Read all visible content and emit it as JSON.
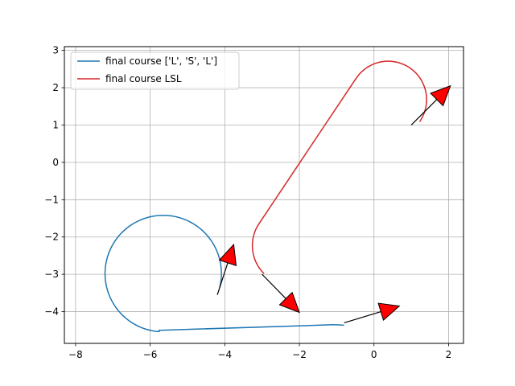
{
  "chart_data": {
    "type": "line",
    "title": "",
    "xlabel": "",
    "ylabel": "",
    "xlim": [
      -8.3,
      2.4
    ],
    "ylim": [
      -4.85,
      3.1
    ],
    "xticks": [
      -8,
      -6,
      -4,
      -2,
      0,
      2
    ],
    "yticks": [
      -4,
      -3,
      -2,
      -1,
      0,
      1,
      2,
      3
    ],
    "grid": true,
    "legend_position": "top-left",
    "series": [
      {
        "name": "final course ['L', 'S', 'L']",
        "color": "#1f77b4",
        "segments": [
          {
            "kind": "arc",
            "center": [
              -5.65,
              -2.98
            ],
            "radius": 1.56,
            "start_deg": -14.0,
            "end_deg": 266.0
          },
          {
            "kind": "line",
            "points": [
              [
                -5.76,
                -4.5
              ],
              [
                -1.1,
                -4.35
              ]
            ]
          },
          {
            "kind": "arc",
            "center": [
              -1.13,
              -8.13
            ],
            "radius": 3.78,
            "start_deg": 90.0,
            "end_deg": 85.0
          }
        ]
      },
      {
        "name": "final course LSL",
        "color": "#d62728",
        "segments": [
          {
            "kind": "arc",
            "center": [
              -2.2,
              -2.23
            ],
            "radius": 1.06,
            "start_deg": 225.0,
            "end_deg": 148.0
          },
          {
            "kind": "line",
            "points": [
              [
                -3.1,
                -1.67
              ],
              [
                -0.48,
                2.25
              ]
            ]
          },
          {
            "kind": "arc",
            "center": [
              0.38,
              1.68
            ],
            "radius": 1.03,
            "start_deg": 148.0,
            "end_deg": -35.0
          }
        ]
      }
    ],
    "arrows": [
      {
        "from": [
          -4.2,
          -3.55
        ],
        "to": [
          -3.76,
          -2.2
        ],
        "color": "#ff0000"
      },
      {
        "from": [
          -3.0,
          -3.0
        ],
        "to": [
          -2.0,
          -4.02
        ],
        "color": "#ff0000"
      },
      {
        "from": [
          -0.8,
          -4.3
        ],
        "to": [
          0.68,
          -3.85
        ],
        "color": "#ff0000"
      },
      {
        "from": [
          1.0,
          1.0
        ],
        "to": [
          2.05,
          2.05
        ],
        "color": "#ff0000"
      }
    ]
  }
}
